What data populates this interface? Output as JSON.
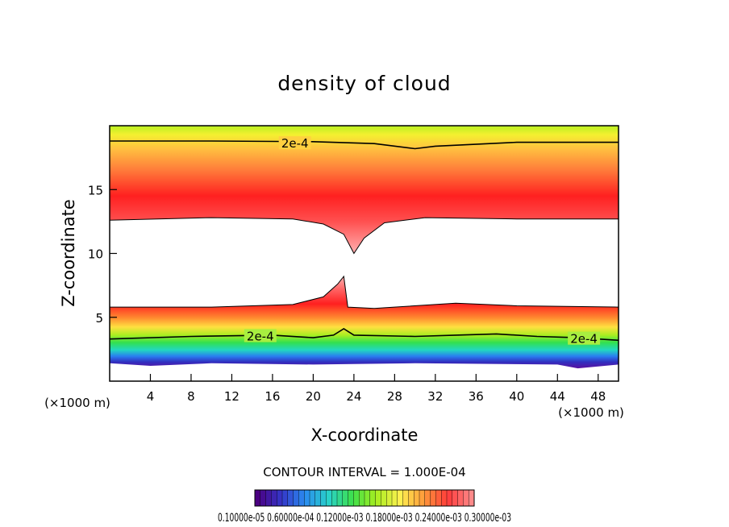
{
  "chart_data": {
    "type": "heatmap",
    "title": "density of cloud",
    "xlabel": "X-coordinate",
    "ylabel": "Z-coordinate",
    "x_unit": "(×1000 m)",
    "x_unit_right": "(×1000 m)",
    "xlim": [
      0,
      50
    ],
    "ylim": [
      0,
      20
    ],
    "x_ticks": [
      4,
      8,
      12,
      16,
      20,
      24,
      28,
      32,
      36,
      40,
      44,
      48
    ],
    "y_ticks": [
      5,
      10,
      15
    ],
    "contour_interval_text": "CONTOUR INTERVAL = 1.000E-04",
    "contour_labels": [
      {
        "text": "2e-4",
        "x": 18.2,
        "z": 18.6
      },
      {
        "text": "2e-4",
        "x": 14.8,
        "z": 3.5
      },
      {
        "text": "2e-4",
        "x": 46.6,
        "z": 3.3
      }
    ],
    "contour_line_2e4_upper": [
      [
        0,
        18.8
      ],
      [
        10,
        18.8
      ],
      [
        20,
        18.75
      ],
      [
        26,
        18.6
      ],
      [
        30,
        18.2
      ],
      [
        32,
        18.4
      ],
      [
        40,
        18.7
      ],
      [
        50,
        18.7
      ]
    ],
    "contour_line_2e4_lower": [
      [
        0,
        3.3
      ],
      [
        8,
        3.5
      ],
      [
        16,
        3.6
      ],
      [
        20,
        3.4
      ],
      [
        22,
        3.6
      ],
      [
        23,
        4.1
      ],
      [
        24,
        3.6
      ],
      [
        30,
        3.5
      ],
      [
        34,
        3.6
      ],
      [
        38,
        3.7
      ],
      [
        42,
        3.5
      ],
      [
        46,
        3.4
      ],
      [
        50,
        3.2
      ]
    ],
    "upper_cloud_base": [
      [
        0,
        12.6
      ],
      [
        10,
        12.8
      ],
      [
        18,
        12.7
      ],
      [
        21,
        12.3
      ],
      [
        23,
        11.5
      ],
      [
        24,
        10.0
      ],
      [
        25,
        11.2
      ],
      [
        27,
        12.4
      ],
      [
        31,
        12.8
      ],
      [
        40,
        12.7
      ],
      [
        50,
        12.7
      ]
    ],
    "lower_cloud_top": [
      [
        0,
        5.8
      ],
      [
        10,
        5.8
      ],
      [
        18,
        6.0
      ],
      [
        21,
        6.6
      ],
      [
        22.4,
        7.6
      ],
      [
        23.0,
        8.2
      ],
      [
        23.4,
        5.8
      ],
      [
        26,
        5.7
      ],
      [
        34,
        6.1
      ],
      [
        40,
        5.9
      ],
      [
        50,
        5.8
      ]
    ],
    "colorbar": {
      "colors": [
        "#4b0082",
        "#3535c8",
        "#2a8cf0",
        "#29d2c8",
        "#3ee04a",
        "#a8ee20",
        "#fff050",
        "#ff9a3a",
        "#ff3a3a",
        "#ff8a8a"
      ],
      "tick_text": "0.10000e-05 0.60000e-04 0.12000e-03 0.18000e-03 0.24000e-03 0.30000e-03"
    }
  }
}
